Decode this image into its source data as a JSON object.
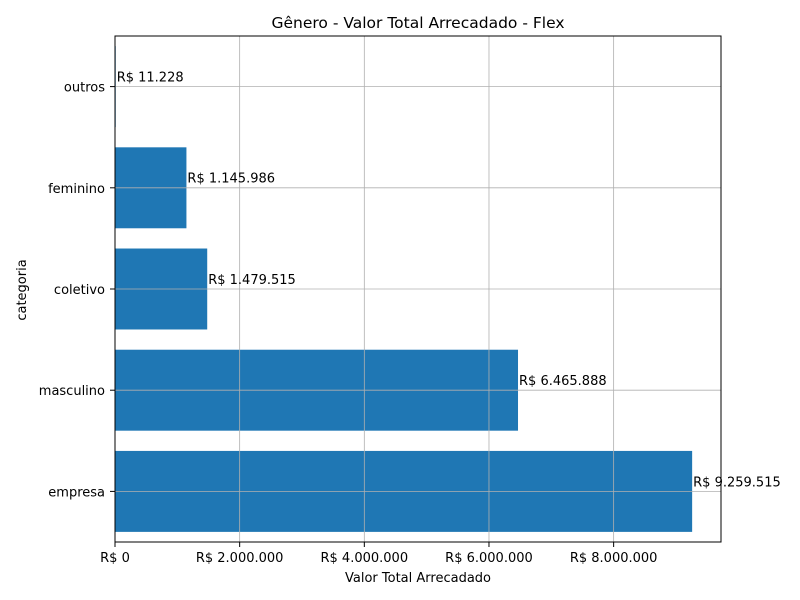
{
  "chart_data": {
    "type": "bar",
    "orientation": "horizontal",
    "title": "Gênero - Valor Total Arrecadado - Flex",
    "xlabel": "Valor Total Arrecadado",
    "ylabel": "categoria",
    "categories": [
      "empresa",
      "masculino",
      "coletivo",
      "feminino",
      "outros"
    ],
    "values": [
      9259515,
      6465888,
      1479515,
      1145986,
      11228
    ],
    "value_labels": [
      "R$ 9.259.515",
      "R$ 6.465.888",
      "R$ 1.479.515",
      "R$ 1.145.986",
      "R$ 11.228"
    ],
    "xlim": [
      0,
      9722491
    ],
    "xticks": [
      0,
      2000000,
      4000000,
      6000000,
      8000000
    ],
    "xtick_labels": [
      "R$ 0",
      "R$ 2.000.000",
      "R$ 4.000.000",
      "R$ 6.000.000",
      "R$ 8.000.000"
    ],
    "grid": true,
    "bar_color": "#1f77b4",
    "grid_color": "#b0b0b0"
  }
}
